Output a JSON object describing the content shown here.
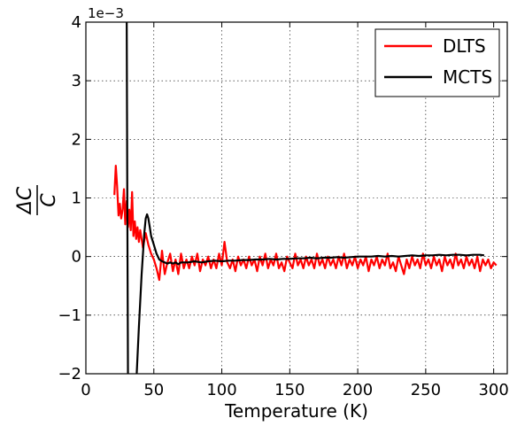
{
  "chart_data": {
    "type": "line",
    "title": "",
    "xlabel": "Temperature (K)",
    "ylabel_numerator": "ΔC",
    "ylabel_denominator": "C",
    "y_scale_label": "1e−3",
    "xlim": [
      0,
      310
    ],
    "ylim": [
      -2,
      4
    ],
    "x_ticks": [
      0,
      50,
      100,
      150,
      200,
      250,
      300
    ],
    "x_tick_labels": [
      "0",
      "50",
      "100",
      "150",
      "200",
      "250",
      "300"
    ],
    "y_ticks": [
      -2,
      -1,
      0,
      1,
      2,
      3,
      4
    ],
    "y_tick_labels": [
      "−2",
      "−1",
      "0",
      "1",
      "2",
      "3",
      "4"
    ],
    "grid": true,
    "legend_position": "top-right",
    "series": [
      {
        "name": "DLTS",
        "color": "#ff0000",
        "points": [
          [
            21,
            1.05
          ],
          [
            22,
            1.55
          ],
          [
            23,
            1.2
          ],
          [
            24,
            0.7
          ],
          [
            25,
            0.9
          ],
          [
            26,
            0.65
          ],
          [
            27,
            0.8
          ],
          [
            28,
            1.15
          ],
          [
            29,
            0.55
          ],
          [
            30,
            0.95
          ],
          [
            31,
            0.5
          ],
          [
            32,
            0.8
          ],
          [
            33,
            0.45
          ],
          [
            34,
            1.1
          ],
          [
            35,
            0.35
          ],
          [
            36,
            0.6
          ],
          [
            37,
            0.3
          ],
          [
            38,
            0.5
          ],
          [
            39,
            0.25
          ],
          [
            40,
            0.45
          ],
          [
            42,
            0.15
          ],
          [
            44,
            0.4
          ],
          [
            46,
            0.2
          ],
          [
            48,
            0.05
          ],
          [
            50,
            -0.05
          ],
          [
            52,
            -0.2
          ],
          [
            54,
            -0.4
          ],
          [
            56,
            0.1
          ],
          [
            58,
            -0.3
          ],
          [
            60,
            -0.1
          ],
          [
            62,
            0.05
          ],
          [
            64,
            -0.25
          ],
          [
            66,
            -0.05
          ],
          [
            68,
            -0.3
          ],
          [
            70,
            0.05
          ],
          [
            72,
            -0.2
          ],
          [
            74,
            -0.05
          ],
          [
            76,
            -0.2
          ],
          [
            78,
            0.0
          ],
          [
            80,
            -0.15
          ],
          [
            82,
            0.05
          ],
          [
            84,
            -0.25
          ],
          [
            86,
            -0.05
          ],
          [
            88,
            -0.15
          ],
          [
            90,
            0.0
          ],
          [
            92,
            -0.2
          ],
          [
            94,
            -0.05
          ],
          [
            96,
            -0.2
          ],
          [
            98,
            0.05
          ],
          [
            100,
            -0.15
          ],
          [
            102,
            0.25
          ],
          [
            104,
            -0.1
          ],
          [
            106,
            -0.2
          ],
          [
            108,
            -0.05
          ],
          [
            110,
            -0.25
          ],
          [
            112,
            0.0
          ],
          [
            114,
            -0.15
          ],
          [
            116,
            -0.05
          ],
          [
            118,
            -0.2
          ],
          [
            120,
            0.0
          ],
          [
            122,
            -0.15
          ],
          [
            124,
            -0.05
          ],
          [
            126,
            -0.25
          ],
          [
            128,
            0.0
          ],
          [
            130,
            -0.15
          ],
          [
            132,
            0.05
          ],
          [
            134,
            -0.2
          ],
          [
            136,
            -0.05
          ],
          [
            138,
            -0.15
          ],
          [
            140,
            0.05
          ],
          [
            142,
            -0.2
          ],
          [
            144,
            -0.1
          ],
          [
            146,
            -0.25
          ],
          [
            148,
            0.0
          ],
          [
            150,
            -0.1
          ],
          [
            152,
            -0.2
          ],
          [
            154,
            0.05
          ],
          [
            156,
            -0.15
          ],
          [
            158,
            -0.05
          ],
          [
            160,
            -0.2
          ],
          [
            162,
            0.0
          ],
          [
            164,
            -0.15
          ],
          [
            166,
            -0.05
          ],
          [
            168,
            -0.2
          ],
          [
            170,
            0.05
          ],
          [
            172,
            -0.15
          ],
          [
            174,
            -0.05
          ],
          [
            176,
            -0.2
          ],
          [
            178,
            0.0
          ],
          [
            180,
            -0.15
          ],
          [
            182,
            -0.05
          ],
          [
            184,
            -0.2
          ],
          [
            186,
            0.0
          ],
          [
            188,
            -0.15
          ],
          [
            190,
            0.05
          ],
          [
            192,
            -0.2
          ],
          [
            194,
            -0.05
          ],
          [
            196,
            -0.15
          ],
          [
            198,
            0.0
          ],
          [
            200,
            -0.2
          ],
          [
            202,
            -0.05
          ],
          [
            204,
            -0.15
          ],
          [
            206,
            0.0
          ],
          [
            208,
            -0.25
          ],
          [
            210,
            -0.05
          ],
          [
            212,
            -0.15
          ],
          [
            214,
            0.0
          ],
          [
            216,
            -0.2
          ],
          [
            218,
            -0.05
          ],
          [
            220,
            -0.15
          ],
          [
            222,
            0.05
          ],
          [
            224,
            -0.2
          ],
          [
            226,
            -0.1
          ],
          [
            228,
            -0.25
          ],
          [
            230,
            0.0
          ],
          [
            232,
            -0.15
          ],
          [
            234,
            -0.3
          ],
          [
            236,
            -0.05
          ],
          [
            238,
            -0.2
          ],
          [
            240,
            0.0
          ],
          [
            242,
            -0.15
          ],
          [
            244,
            -0.05
          ],
          [
            246,
            -0.2
          ],
          [
            248,
            0.05
          ],
          [
            250,
            -0.15
          ],
          [
            252,
            -0.05
          ],
          [
            254,
            -0.2
          ],
          [
            256,
            0.0
          ],
          [
            258,
            -0.15
          ],
          [
            260,
            -0.05
          ],
          [
            262,
            -0.25
          ],
          [
            264,
            0.0
          ],
          [
            266,
            -0.15
          ],
          [
            268,
            -0.05
          ],
          [
            270,
            -0.2
          ],
          [
            272,
            0.05
          ],
          [
            274,
            -0.15
          ],
          [
            276,
            -0.05
          ],
          [
            278,
            -0.2
          ],
          [
            280,
            0.0
          ],
          [
            282,
            -0.15
          ],
          [
            284,
            -0.05
          ],
          [
            286,
            -0.2
          ],
          [
            288,
            0.0
          ],
          [
            290,
            -0.25
          ],
          [
            292,
            -0.05
          ],
          [
            294,
            -0.15
          ],
          [
            296,
            -0.05
          ],
          [
            298,
            -0.2
          ],
          [
            300,
            -0.1
          ],
          [
            302,
            -0.15
          ]
        ]
      },
      {
        "name": "MCTS",
        "color": "#000000",
        "points": [
          [
            30,
            4.2
          ],
          [
            30.5,
            1.0
          ],
          [
            31,
            -2.2
          ],
          [
            35,
            -2.2
          ],
          [
            37,
            -2.2
          ],
          [
            39,
            -1.2
          ],
          [
            41,
            -0.3
          ],
          [
            43,
            0.4
          ],
          [
            44,
            0.65
          ],
          [
            45,
            0.72
          ],
          [
            46,
            0.65
          ],
          [
            47,
            0.5
          ],
          [
            48,
            0.35
          ],
          [
            50,
            0.2
          ],
          [
            52,
            0.05
          ],
          [
            54,
            -0.05
          ],
          [
            56,
            -0.08
          ],
          [
            58,
            -0.1
          ],
          [
            60,
            -0.12
          ],
          [
            62,
            -0.1
          ],
          [
            64,
            -0.12
          ],
          [
            66,
            -0.1
          ],
          [
            68,
            -0.13
          ],
          [
            70,
            -0.1
          ],
          [
            75,
            -0.1
          ],
          [
            80,
            -0.08
          ],
          [
            85,
            -0.1
          ],
          [
            90,
            -0.08
          ],
          [
            95,
            -0.07
          ],
          [
            100,
            -0.08
          ],
          [
            105,
            -0.07
          ],
          [
            110,
            -0.07
          ],
          [
            115,
            -0.06
          ],
          [
            120,
            -0.06
          ],
          [
            125,
            -0.05
          ],
          [
            130,
            -0.05
          ],
          [
            135,
            -0.04
          ],
          [
            140,
            -0.05
          ],
          [
            145,
            -0.04
          ],
          [
            150,
            -0.04
          ],
          [
            155,
            -0.03
          ],
          [
            160,
            -0.03
          ],
          [
            165,
            -0.02
          ],
          [
            170,
            -0.03
          ],
          [
            175,
            -0.02
          ],
          [
            180,
            -0.02
          ],
          [
            185,
            -0.01
          ],
          [
            190,
            -0.02
          ],
          [
            195,
            -0.01
          ],
          [
            200,
            0.0
          ],
          [
            205,
            0.0
          ],
          [
            210,
            0.0
          ],
          [
            215,
            0.01
          ],
          [
            220,
            0.0
          ],
          [
            225,
            0.01
          ],
          [
            230,
            0.0
          ],
          [
            235,
            0.01
          ],
          [
            240,
            0.02
          ],
          [
            245,
            0.01
          ],
          [
            250,
            0.02
          ],
          [
            255,
            0.02
          ],
          [
            260,
            0.03
          ],
          [
            265,
            0.02
          ],
          [
            270,
            0.03
          ],
          [
            275,
            0.03
          ],
          [
            280,
            0.02
          ],
          [
            285,
            0.03
          ],
          [
            290,
            0.03
          ],
          [
            293,
            0.02
          ]
        ]
      }
    ]
  }
}
